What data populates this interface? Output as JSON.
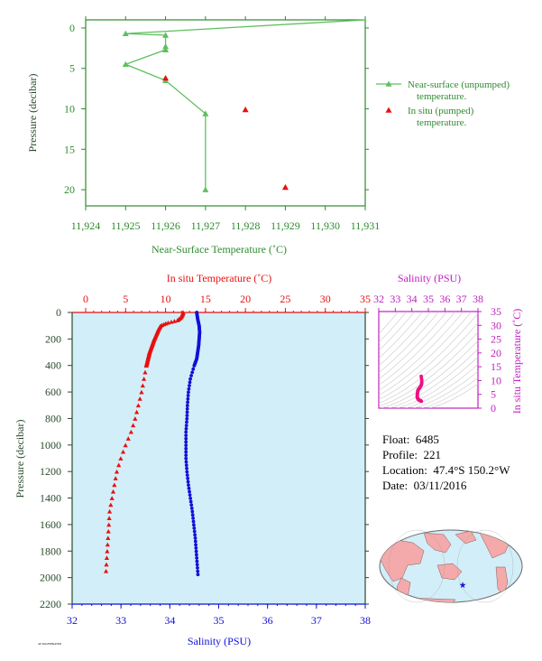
{
  "colors": {
    "top_axis": "#2e8b2e",
    "top_line": "#5cc05c",
    "insitu": "#e81010",
    "salinity": "#1010d8",
    "left_axis": "#2a4a2a",
    "profile_bg": "#d2eef8",
    "ts_axis": "#c020c0",
    "ts_points": "#f01080",
    "map_land": "#f4aaaa",
    "map_ocean": "#d2eef8"
  },
  "info": {
    "float_label": "Float:",
    "float": "6485",
    "profile_label": "Profile:",
    "profile": "221",
    "location_label": "Location:",
    "location": "47.4°S  150.2°W",
    "date_label": "Date:",
    "date": "03/11/2016"
  },
  "footer_code": "AUTOGENERATED",
  "chart_data": [
    {
      "id": "near_surface",
      "type": "line",
      "xlabel": "Near-Surface Temperature (˚C)",
      "ylabel": "Pressure (decibar)",
      "xlim": [
        11.924,
        11.931
      ],
      "ylim": [
        22,
        -1
      ],
      "xticks": [
        "11,924",
        "11,925",
        "11,926",
        "11,927",
        "11,928",
        "11,929",
        "11,930",
        "11,931"
      ],
      "yticks": [
        0,
        5,
        10,
        15,
        20
      ],
      "series": [
        {
          "name": "Near-surface (unpumped) temperature.",
          "marker": "triangle-line",
          "x": [
            11.931,
            11.925,
            11.926,
            11.926,
            11.926,
            11.925,
            11.926,
            11.927,
            11.927
          ],
          "y": [
            -1.0,
            0.7,
            0.9,
            2.3,
            2.7,
            4.5,
            6.5,
            10.6,
            20.0
          ]
        },
        {
          "name": "In situ (pumped) temperature.",
          "marker": "triangle",
          "x": [
            11.926,
            11.928,
            11.929
          ],
          "y": [
            6.2,
            10.1,
            19.7
          ]
        }
      ],
      "legend": "right"
    },
    {
      "id": "profile",
      "type": "scatter",
      "top_xlabel": "In situ Temperature (˚C)",
      "bottom_xlabel": "Salinity (PSU)",
      "ylabel": "Pressure (decibar)",
      "temp_lim": [
        0,
        35
      ],
      "sal_lim": [
        32,
        38
      ],
      "ylim": [
        2200,
        0
      ],
      "temp_ticks": [
        0,
        5,
        10,
        15,
        20,
        25,
        30,
        35
      ],
      "sal_ticks": [
        32,
        33,
        34,
        35,
        36,
        37,
        38
      ],
      "yticks": [
        0,
        200,
        400,
        600,
        800,
        1000,
        1200,
        1400,
        1600,
        1800,
        2000,
        2200
      ],
      "temperature": {
        "p": [
          0,
          20,
          40,
          60,
          80,
          100,
          130,
          160,
          200,
          250,
          300,
          350,
          400,
          500,
          600,
          700,
          800,
          900,
          1000,
          1100,
          1200,
          1300,
          1400,
          1500,
          1600,
          1700,
          1800,
          1900,
          2000
        ],
        "t": [
          12.2,
          12.1,
          11.9,
          11.5,
          10.2,
          9.4,
          9.1,
          8.9,
          8.6,
          8.3,
          8.0,
          7.8,
          7.6,
          7.3,
          7.0,
          6.6,
          6.2,
          5.7,
          5.0,
          4.4,
          3.9,
          3.6,
          3.3,
          3.0,
          2.9,
          2.8,
          2.7,
          2.6,
          2.5
        ]
      },
      "salinity": {
        "p": [
          0,
          50,
          100,
          150,
          200,
          250,
          300,
          350,
          400,
          500,
          600,
          700,
          800,
          900,
          1000,
          1100,
          1200,
          1300,
          1400,
          1500,
          1600,
          1700,
          1800,
          1900,
          2000
        ],
        "s": [
          34.55,
          34.57,
          34.6,
          34.61,
          34.6,
          34.59,
          34.57,
          34.55,
          34.5,
          34.42,
          34.38,
          34.36,
          34.35,
          34.33,
          34.33,
          34.33,
          34.35,
          34.38,
          34.42,
          34.46,
          34.49,
          34.52,
          34.54,
          34.56,
          34.58
        ]
      }
    },
    {
      "id": "ts_diagram",
      "type": "scatter",
      "xlabel": "Salinity (PSU)",
      "ylabel": "In situ Temperature (˚C)",
      "xlim": [
        32,
        38
      ],
      "ylim": [
        0,
        35
      ],
      "xticks": [
        32,
        33,
        34,
        35,
        36,
        37,
        38
      ],
      "yticks": [
        0,
        5,
        10,
        15,
        20,
        25,
        30,
        35
      ],
      "s": [
        34.58,
        34.55,
        34.52,
        34.49,
        34.46,
        34.42,
        34.38,
        34.35,
        34.33,
        34.33,
        34.33,
        34.35,
        34.36,
        34.38,
        34.42,
        34.5,
        34.57,
        34.6,
        34.6,
        34.55
      ],
      "t": [
        2.5,
        2.6,
        2.7,
        2.8,
        2.9,
        3.0,
        3.3,
        3.6,
        3.9,
        4.4,
        5.0,
        5.7,
        6.2,
        6.6,
        7.0,
        7.6,
        8.3,
        9.1,
        10.2,
        12.2
      ]
    },
    {
      "id": "location_map",
      "type": "map",
      "marker": {
        "lat": -47.4,
        "lon": -150.2,
        "symbol": "star"
      }
    }
  ]
}
